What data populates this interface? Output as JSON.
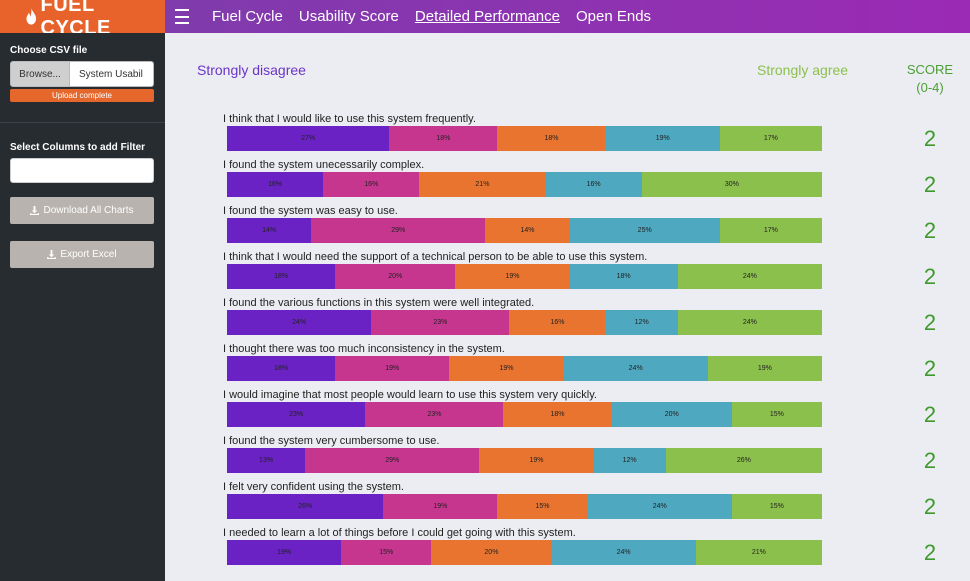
{
  "brand": {
    "name": "FUEL CYCLE"
  },
  "nav": [
    {
      "label": "Fuel Cycle",
      "active": false
    },
    {
      "label": "Usability Score",
      "active": false
    },
    {
      "label": "Detailed Performance",
      "active": true
    },
    {
      "label": "Open Ends",
      "active": false
    }
  ],
  "sidebar": {
    "csv_label": "Choose CSV file",
    "browse_label": "Browse...",
    "file_name": "System Usabil",
    "upload_status": "Upload complete",
    "filter_label": "Select Columns to add Filter",
    "filter_value": "",
    "download_label": "Download All Charts",
    "export_label": "Export Excel"
  },
  "header": {
    "left": "Strongly disagree",
    "right": "Strongly agree",
    "score_line1": "SCORE",
    "score_line2": "(0-4)"
  },
  "colors": [
    "#6a22c4",
    "#c6368f",
    "#e8742f",
    "#4ea8bf",
    "#8cc04c"
  ],
  "rows": [
    {
      "question": "I think that I would like to use this system frequently.",
      "values": [
        27,
        18,
        18,
        19,
        17
      ],
      "score": "2"
    },
    {
      "question": "I found the system unecessarily complex.",
      "values": [
        16,
        16,
        21,
        16,
        30
      ],
      "score": "2"
    },
    {
      "question": "I found the system was easy to use.",
      "values": [
        14,
        29,
        14,
        25,
        17
      ],
      "score": "2"
    },
    {
      "question": "I think that I would need the support of a technical person to be able to use this system.",
      "values": [
        18,
        20,
        19,
        18,
        24
      ],
      "score": "2"
    },
    {
      "question": "I found the various functions in this system were well integrated.",
      "values": [
        24,
        23,
        16,
        12,
        24
      ],
      "score": "2"
    },
    {
      "question": "I thought there was too much inconsistency in the system.",
      "values": [
        18,
        19,
        19,
        24,
        19
      ],
      "score": "2"
    },
    {
      "question": "I would imagine that most people would learn to use this system very quickly.",
      "values": [
        23,
        23,
        18,
        20,
        15
      ],
      "score": "2"
    },
    {
      "question": "I found the system very cumbersome to use.",
      "values": [
        13,
        29,
        19,
        12,
        26
      ],
      "score": "2"
    },
    {
      "question": "I felt very confident using the system.",
      "values": [
        26,
        19,
        15,
        24,
        15
      ],
      "score": "2"
    },
    {
      "question": "I needed to learn a lot of things before I could get going with this system.",
      "values": [
        19,
        15,
        20,
        24,
        21
      ],
      "score": "2"
    }
  ]
}
